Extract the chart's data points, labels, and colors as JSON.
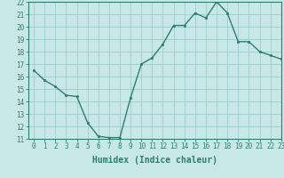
{
  "x": [
    0,
    1,
    2,
    3,
    4,
    5,
    6,
    7,
    8,
    9,
    10,
    11,
    12,
    13,
    14,
    15,
    16,
    17,
    18,
    19,
    20,
    21,
    22,
    23
  ],
  "y": [
    16.5,
    15.7,
    15.2,
    14.5,
    14.4,
    12.3,
    11.2,
    11.1,
    11.1,
    14.3,
    17.0,
    17.5,
    18.6,
    20.1,
    20.1,
    21.1,
    20.7,
    22.0,
    21.1,
    18.8,
    18.8,
    18.0,
    17.7,
    17.4
  ],
  "xlabel": "Humidex (Indice chaleur)",
  "ylim": [
    11,
    22
  ],
  "xlim": [
    -0.5,
    23
  ],
  "yticks": [
    11,
    12,
    13,
    14,
    15,
    16,
    17,
    18,
    19,
    20,
    21,
    22
  ],
  "xticks": [
    0,
    1,
    2,
    3,
    4,
    5,
    6,
    7,
    8,
    9,
    10,
    11,
    12,
    13,
    14,
    15,
    16,
    17,
    18,
    19,
    20,
    21,
    22,
    23
  ],
  "line_color": "#2e7d6e",
  "marker_color": "#2e7d6e",
  "bg_color": "#c8e8e8",
  "grid_color": "#a0cccc",
  "axis_color": "#2e7d6e",
  "label_fontsize": 6.5,
  "tick_fontsize": 5.5,
  "xlabel_fontsize": 7.0
}
